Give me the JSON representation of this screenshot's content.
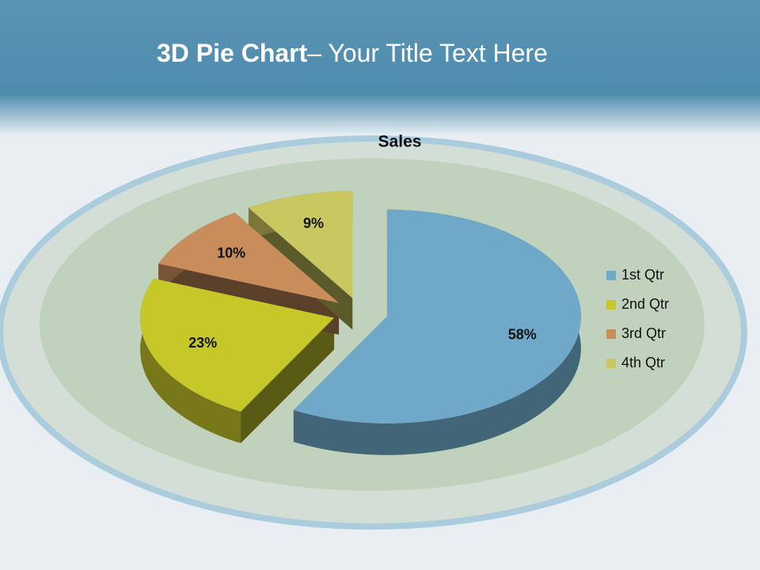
{
  "slide_title": {
    "bold": "3D Pie Chart",
    "rest": "– Your Title Text Here"
  },
  "chart_data": {
    "type": "pie",
    "title": "Sales",
    "categories": [
      "1st Qtr",
      "2nd Qtr",
      "3rd Qtr",
      "4th Qtr"
    ],
    "values": [
      58,
      23,
      10,
      9
    ],
    "value_labels": [
      "58%",
      "23%",
      "10%",
      "9%"
    ],
    "colors": [
      "#6fa8c8",
      "#c6c82a",
      "#c98d5c",
      "#c9c760"
    ],
    "legend": "right"
  }
}
